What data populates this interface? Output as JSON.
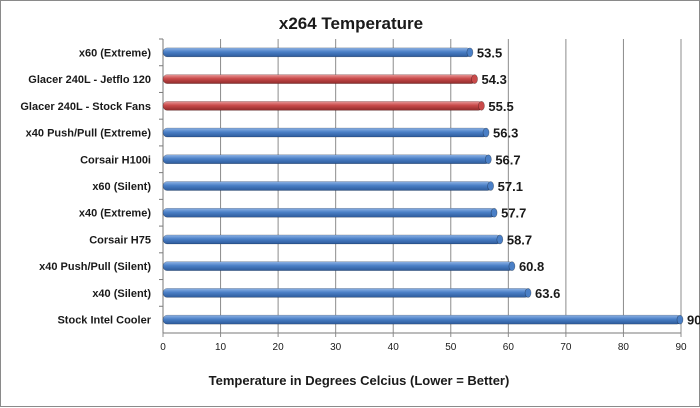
{
  "chart_data": {
    "type": "bar",
    "orientation": "horizontal",
    "title": "x264 Temperature",
    "xlabel": "Temperature in Degrees Celcius (Lower = Better)",
    "ylabel": "",
    "xlim": [
      0,
      90
    ],
    "xticks": [
      "0",
      "10",
      "20",
      "30",
      "40",
      "50",
      "60",
      "70",
      "80",
      "90"
    ],
    "grid": "vertical",
    "legend": "none",
    "categories": [
      "x60 (Extreme)",
      "Glacer 240L - Jetflo 120",
      "Glacer 240L - Stock Fans",
      "x40 Push/Pull (Extreme)",
      "Corsair H100i",
      "x60 (Silent)",
      "x40 (Extreme)",
      "Corsair H75",
      "x40 Push/Pull (Silent)",
      "x40 (Silent)",
      "Stock Intel Cooler"
    ],
    "values": [
      53.5,
      54.3,
      55.5,
      56.3,
      56.7,
      57.1,
      57.7,
      58.7,
      60.8,
      63.6,
      90
    ],
    "data_labels": [
      "53.5",
      "54.3",
      "55.5",
      "56.3",
      "56.7",
      "57.1",
      "57.7",
      "58.7",
      "60.8",
      "63.6",
      "90"
    ],
    "bar_colors": [
      "#4a7fc6",
      "#c94a4a",
      "#c94a4a",
      "#4a7fc6",
      "#4a7fc6",
      "#4a7fc6",
      "#4a7fc6",
      "#4a7fc6",
      "#4a7fc6",
      "#4a7fc6",
      "#4a7fc6"
    ],
    "colors": {
      "blue": "#4a7fc6",
      "red": "#c94a4a",
      "grid": "#8c8c8c"
    }
  }
}
